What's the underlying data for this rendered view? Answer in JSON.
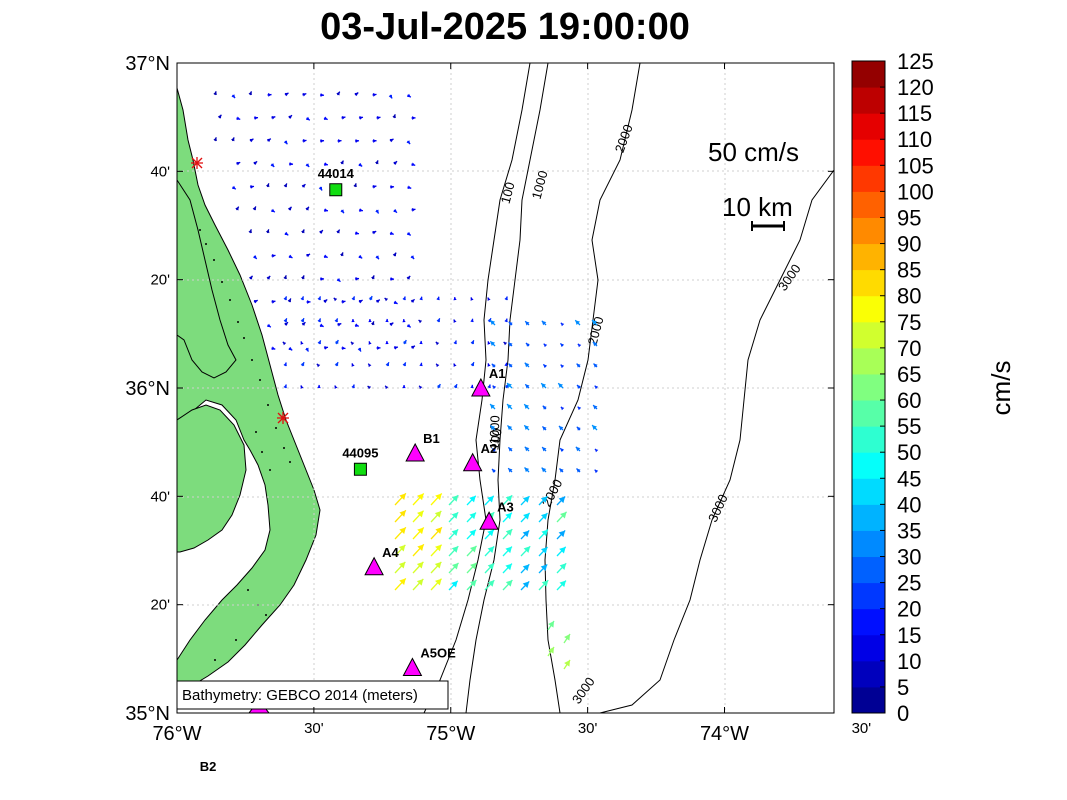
{
  "title": "03-Jul-2025 19:00:00",
  "map": {
    "lon_ticks": [
      {
        "lon": -76.0,
        "label": "76°W",
        "major": true
      },
      {
        "lon": -75.5,
        "label": "30'",
        "major": false
      },
      {
        "lon": -75.0,
        "label": "75°W",
        "major": true
      },
      {
        "lon": -74.5,
        "label": "30'",
        "major": false
      },
      {
        "lon": -74.0,
        "label": "74°W",
        "major": true
      },
      {
        "lon": -73.5,
        "label": "30'",
        "major": false
      }
    ],
    "lat_ticks": [
      {
        "lat": 37.0,
        "label": "37°N",
        "major": true
      },
      {
        "lat": 36.6667,
        "label": "40'",
        "major": false
      },
      {
        "lat": 36.3333,
        "label": "20'",
        "major": false
      },
      {
        "lat": 36.0,
        "label": "36°N",
        "major": true
      },
      {
        "lat": 35.6667,
        "label": "40'",
        "major": false
      },
      {
        "lat": 35.3333,
        "label": "20'",
        "major": false
      },
      {
        "lat": 35.0,
        "label": "35°N",
        "major": true
      }
    ],
    "bathymetry_note": "Bathymetry: GEBCO 2014 (meters)",
    "contour_labels": [
      "100",
      "1000",
      "2000",
      "2000",
      "3000",
      "100",
      "1000",
      "2000",
      "3000",
      "3000",
      "3000"
    ],
    "scale_speed_label": "50 cm/s",
    "scale_distance_label": "10 km"
  },
  "stations": [
    {
      "name": "44014",
      "type": "buoy",
      "lon": -75.42,
      "lat": 36.61
    },
    {
      "name": "44095",
      "type": "buoy",
      "lon": -75.33,
      "lat": 35.75
    },
    {
      "name": "A1",
      "type": "mooring",
      "lon": -74.89,
      "lat": 36.0
    },
    {
      "name": "B1",
      "type": "mooring",
      "lon": -75.13,
      "lat": 35.8
    },
    {
      "name": "A2",
      "type": "mooring",
      "lon": -74.92,
      "lat": 35.77
    },
    {
      "name": "A3",
      "type": "mooring",
      "lon": -74.86,
      "lat": 35.59
    },
    {
      "name": "A4",
      "type": "mooring",
      "lon": -75.28,
      "lat": 35.45
    },
    {
      "name": "A5OE",
      "type": "mooring",
      "lon": -75.14,
      "lat": 35.14
    },
    {
      "name": "B2",
      "type": "mooring",
      "lon": -75.7,
      "lat": 35.0
    }
  ],
  "colorbar": {
    "label": "cm/s",
    "min": 0,
    "max": 125,
    "ticks": [
      "125",
      "120",
      "115",
      "110",
      "105",
      "100",
      "95",
      "90",
      "85",
      "80",
      "75",
      "70",
      "65",
      "60",
      "55",
      "50",
      "45",
      "40",
      "35",
      "30",
      "25",
      "20",
      "15",
      "10",
      "5",
      "0"
    ]
  }
}
